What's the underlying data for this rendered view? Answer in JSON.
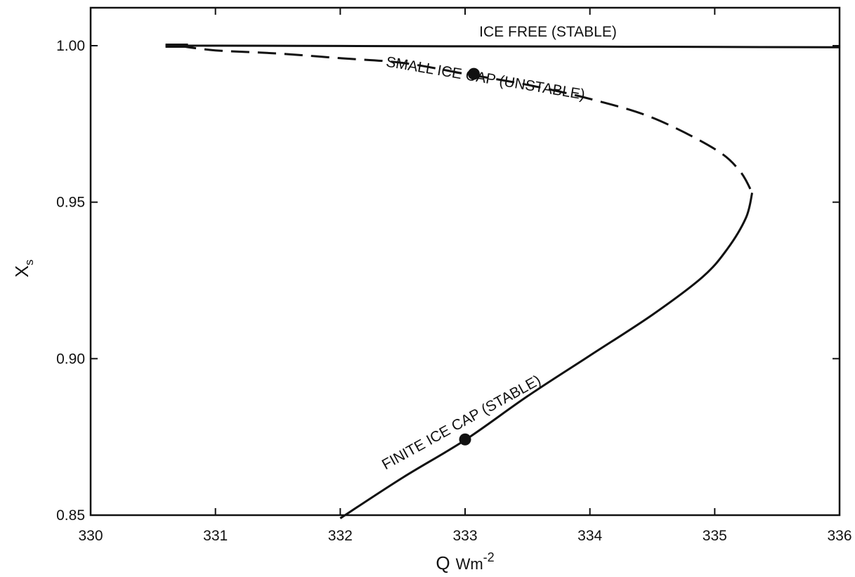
{
  "chart_data": {
    "type": "line",
    "title": "",
    "xlabel": "Q",
    "xlabel_unit": "Wm",
    "xlabel_unit_exponent": "-2",
    "ylabel": "X",
    "ylabel_subscript": "s",
    "xlim": [
      330,
      336
    ],
    "ylim": [
      0.85,
      1.012
    ],
    "x_ticks": [
      330,
      331,
      332,
      333,
      334,
      335,
      336
    ],
    "x_tick_labels": [
      "330",
      "331",
      "332",
      "333",
      "334",
      "335",
      "336"
    ],
    "y_ticks": [
      0.85,
      0.9,
      0.95,
      1.0
    ],
    "y_tick_labels": [
      "0.85",
      "0.90",
      "0.95",
      "1.00"
    ],
    "grid": false,
    "legend": "none",
    "series": [
      {
        "style": "solid",
        "x": [
          330.6,
          331.0,
          332.0,
          333.0,
          334.0,
          335.0,
          336.0
        ],
        "y": [
          1.0,
          1.0,
          0.9999,
          0.9998,
          0.9997,
          0.9996,
          0.9995
        ]
      },
      {
        "style": "dashed",
        "x": [
          330.7,
          331.0,
          331.5,
          332.0,
          332.5,
          333.0,
          333.5,
          334.0,
          334.5,
          335.0,
          335.2,
          335.3
        ],
        "y": [
          1.0,
          0.9985,
          0.9975,
          0.996,
          0.9945,
          0.991,
          0.9875,
          0.983,
          0.977,
          0.967,
          0.96,
          0.953
        ]
      },
      {
        "style": "solid",
        "x": [
          335.3,
          335.25,
          335.1,
          334.9,
          334.5,
          334.0,
          333.5,
          333.0,
          332.5,
          332.0
        ],
        "y": [
          0.953,
          0.945,
          0.935,
          0.926,
          0.914,
          0.901,
          0.888,
          0.874,
          0.862,
          0.849
        ]
      }
    ],
    "markers": [
      {
        "x": 333.07,
        "y": 0.991
      },
      {
        "x": 333.0,
        "y": 0.8742
      }
    ],
    "annotations": [
      {
        "text": "ICE FREE (STABLE)"
      },
      {
        "text": "SMALL ICE CAP (UNSTABLE)"
      },
      {
        "text": "FINITE ICE CAP (STABLE)"
      }
    ]
  }
}
